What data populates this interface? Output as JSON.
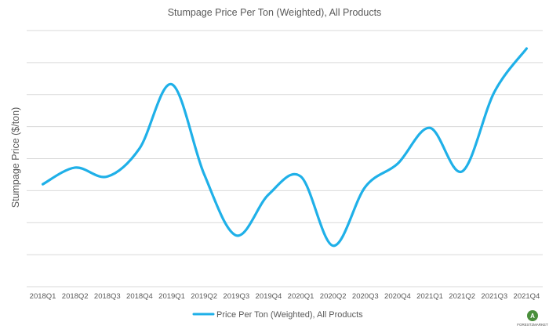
{
  "chart_data": {
    "type": "line",
    "title": "Stumpage Price Per Ton (Weighted), All Products",
    "xlabel": "",
    "ylabel": "Stumpage Price ($/ton)",
    "categories": [
      "2018Q1",
      "2018Q2",
      "2018Q3",
      "2018Q4",
      "2019Q1",
      "2019Q2",
      "2019Q3",
      "2019Q4",
      "2020Q1",
      "2020Q2",
      "2020Q3",
      "2020Q4",
      "2021Q1",
      "2021Q2",
      "2021Q3",
      "2021Q4"
    ],
    "series": [
      {
        "name": "Price Per Ton (Weighted), All Products",
        "values": [
          3.0,
          3.65,
          3.3,
          4.4,
          6.9,
          3.4,
          1.0,
          2.6,
          3.3,
          0.6,
          2.9,
          3.8,
          5.2,
          3.5,
          6.6,
          8.3
        ]
      }
    ],
    "ylim": [
      -1,
      9
    ],
    "ygrid_count": 8,
    "y_tick_labels_visible": false,
    "grid": true,
    "legend_position": "bottom",
    "series_color": "#1fb0e8"
  },
  "branding": {
    "logo_text": "FOREST2MARKET",
    "logo_initial": "A",
    "logo_color": "#4a8f3c"
  }
}
